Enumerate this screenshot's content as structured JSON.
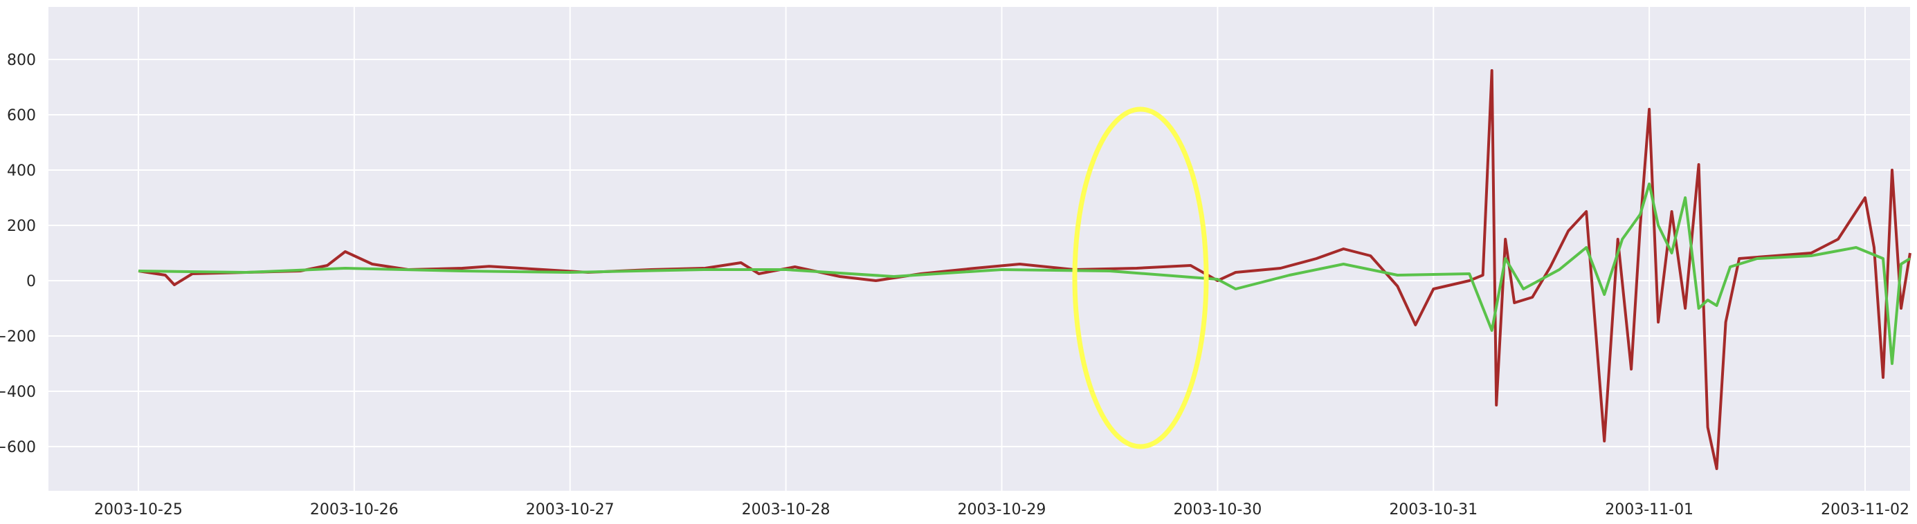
{
  "chart_data": {
    "type": "line",
    "title": "",
    "xlabel": "",
    "ylabel": "",
    "style": "seaborn-darkgrid",
    "x_tick_labels": [
      "2003-10-25",
      "2003-10-26",
      "2003-10-27",
      "2003-10-28",
      "2003-10-29",
      "2003-10-30",
      "2003-10-31",
      "2003-11-01",
      "2003-11-02"
    ],
    "y_tick_labels": [
      "−600",
      "−400",
      "−200",
      "0",
      "200",
      "400",
      "600",
      "800"
    ],
    "y_ticks": [
      -600,
      -400,
      -200,
      0,
      200,
      400,
      600,
      800
    ],
    "x_range": [
      "2003-10-24T14:00",
      "2003-11-02T05:00"
    ],
    "ylim": [
      -760,
      990
    ],
    "grid": true,
    "colors": {
      "background": "#eaeaf2",
      "grid": "#ffffff",
      "series_red": "#a52a2a",
      "series_green": "#5ac24a",
      "highlight_ellipse": "#ffff55"
    },
    "series": [
      {
        "color": "#a52a2a",
        "points": [
          [
            "2003-10-25T00:00",
            35
          ],
          [
            "2003-10-25T03:00",
            20
          ],
          [
            "2003-10-25T04:00",
            -15
          ],
          [
            "2003-10-25T06:00",
            25
          ],
          [
            "2003-10-25T12:00",
            30
          ],
          [
            "2003-10-25T18:00",
            35
          ],
          [
            "2003-10-25T21:00",
            55
          ],
          [
            "2003-10-25T23:00",
            105
          ],
          [
            "2003-10-26T02:00",
            60
          ],
          [
            "2003-10-26T06:00",
            40
          ],
          [
            "2003-10-26T12:00",
            45
          ],
          [
            "2003-10-26T15:00",
            52
          ],
          [
            "2003-10-26T21:00",
            40
          ],
          [
            "2003-10-27T02:00",
            30
          ],
          [
            "2003-10-27T09:00",
            40
          ],
          [
            "2003-10-27T15:00",
            45
          ],
          [
            "2003-10-27T19:00",
            65
          ],
          [
            "2003-10-27T21:00",
            25
          ],
          [
            "2003-10-28T01:00",
            50
          ],
          [
            "2003-10-28T06:00",
            15
          ],
          [
            "2003-10-28T10:00",
            0
          ],
          [
            "2003-10-28T15:00",
            25
          ],
          [
            "2003-10-28T21:00",
            45
          ],
          [
            "2003-10-29T02:00",
            60
          ],
          [
            "2003-10-29T08:00",
            40
          ],
          [
            "2003-10-29T15:00",
            45
          ],
          [
            "2003-10-29T21:00",
            55
          ],
          [
            "2003-10-30T00:00",
            0
          ],
          [
            "2003-10-30T02:00",
            30
          ],
          [
            "2003-10-30T07:00",
            45
          ],
          [
            "2003-10-30T11:00",
            80
          ],
          [
            "2003-10-30T14:00",
            115
          ],
          [
            "2003-10-30T17:00",
            90
          ],
          [
            "2003-10-30T20:00",
            -20
          ],
          [
            "2003-10-30T22:00",
            -160
          ],
          [
            "2003-10-31T00:00",
            -30
          ],
          [
            "2003-10-31T04:00",
            0
          ],
          [
            "2003-10-31T05:30",
            20
          ],
          [
            "2003-10-31T06:30",
            760
          ],
          [
            "2003-10-31T07:00",
            -450
          ],
          [
            "2003-10-31T08:00",
            150
          ],
          [
            "2003-10-31T09:00",
            -80
          ],
          [
            "2003-10-31T11:00",
            -60
          ],
          [
            "2003-10-31T13:00",
            50
          ],
          [
            "2003-10-31T15:00",
            180
          ],
          [
            "2003-10-31T17:00",
            250
          ],
          [
            "2003-10-31T19:00",
            -580
          ],
          [
            "2003-10-31T20:30",
            150
          ],
          [
            "2003-10-31T22:00",
            -320
          ],
          [
            "2003-10-31T23:00",
            200
          ],
          [
            "2003-11-01T00:00",
            620
          ],
          [
            "2003-11-01T01:00",
            -150
          ],
          [
            "2003-11-01T02:30",
            250
          ],
          [
            "2003-11-01T04:00",
            -100
          ],
          [
            "2003-11-01T05:30",
            420
          ],
          [
            "2003-11-01T06:30",
            -530
          ],
          [
            "2003-11-01T07:30",
            -680
          ],
          [
            "2003-11-01T08:30",
            -150
          ],
          [
            "2003-11-01T10:00",
            80
          ],
          [
            "2003-11-01T14:00",
            90
          ],
          [
            "2003-11-01T18:00",
            100
          ],
          [
            "2003-11-01T21:00",
            150
          ],
          [
            "2003-11-02T00:00",
            300
          ],
          [
            "2003-11-02T01:00",
            120
          ],
          [
            "2003-11-02T02:00",
            -350
          ],
          [
            "2003-11-02T03:00",
            400
          ],
          [
            "2003-11-02T04:00",
            -100
          ],
          [
            "2003-11-02T05:00",
            100
          ]
        ]
      },
      {
        "color": "#5ac24a",
        "points": [
          [
            "2003-10-25T00:00",
            35
          ],
          [
            "2003-10-25T12:00",
            30
          ],
          [
            "2003-10-25T23:00",
            45
          ],
          [
            "2003-10-26T12:00",
            35
          ],
          [
            "2003-10-27T00:00",
            30
          ],
          [
            "2003-10-27T15:00",
            40
          ],
          [
            "2003-10-28T00:00",
            40
          ],
          [
            "2003-10-28T12:00",
            15
          ],
          [
            "2003-10-29T00:00",
            40
          ],
          [
            "2003-10-29T12:00",
            35
          ],
          [
            "2003-10-30T00:00",
            5
          ],
          [
            "2003-10-30T02:00",
            -30
          ],
          [
            "2003-10-30T08:00",
            20
          ],
          [
            "2003-10-30T14:00",
            60
          ],
          [
            "2003-10-30T20:00",
            20
          ],
          [
            "2003-10-31T04:00",
            25
          ],
          [
            "2003-10-31T06:30",
            -180
          ],
          [
            "2003-10-31T08:00",
            80
          ],
          [
            "2003-10-31T10:00",
            -30
          ],
          [
            "2003-10-31T14:00",
            40
          ],
          [
            "2003-10-31T17:00",
            120
          ],
          [
            "2003-10-31T19:00",
            -50
          ],
          [
            "2003-10-31T21:00",
            150
          ],
          [
            "2003-10-31T23:00",
            240
          ],
          [
            "2003-11-01T00:00",
            350
          ],
          [
            "2003-11-01T01:00",
            200
          ],
          [
            "2003-11-01T02:30",
            100
          ],
          [
            "2003-11-01T04:00",
            300
          ],
          [
            "2003-11-01T05:30",
            -100
          ],
          [
            "2003-11-01T06:30",
            -70
          ],
          [
            "2003-11-01T07:30",
            -90
          ],
          [
            "2003-11-01T09:00",
            50
          ],
          [
            "2003-11-01T12:00",
            80
          ],
          [
            "2003-11-01T18:00",
            90
          ],
          [
            "2003-11-01T23:00",
            120
          ],
          [
            "2003-11-02T02:00",
            80
          ],
          [
            "2003-11-02T03:00",
            -300
          ],
          [
            "2003-11-02T04:00",
            60
          ],
          [
            "2003-11-02T05:00",
            80
          ]
        ]
      }
    ]
  }
}
